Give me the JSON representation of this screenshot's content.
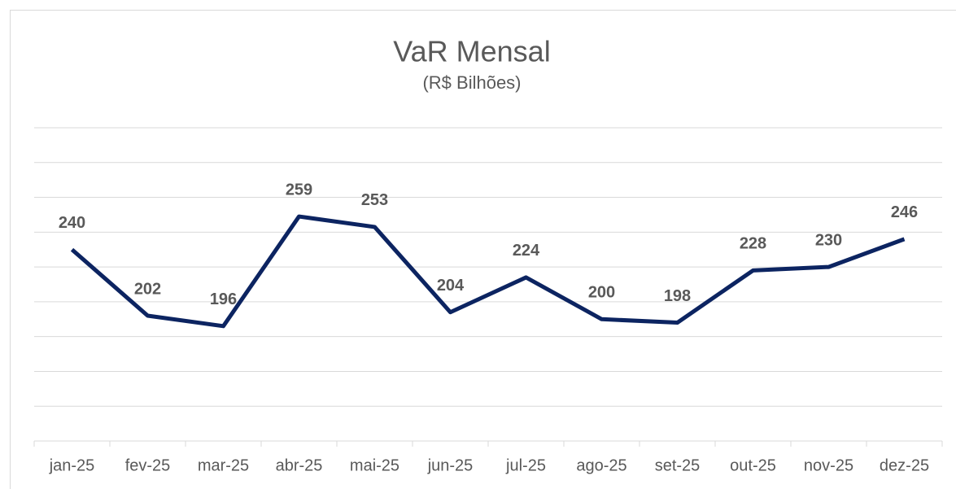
{
  "chart_data": {
    "type": "line",
    "title": "VaR Mensal",
    "subtitle": "(R$ Bilhões)",
    "categories": [
      "jan-25",
      "fev-25",
      "mar-25",
      "abr-25",
      "mai-25",
      "jun-25",
      "jul-25",
      "ago-25",
      "set-25",
      "out-25",
      "nov-25",
      "dez-25"
    ],
    "series": [
      {
        "name": "VaR",
        "color": "#0c2461",
        "values": [
          240,
          202,
          196,
          259,
          253,
          204,
          224,
          200,
          198,
          228,
          230,
          246
        ]
      }
    ],
    "ylim": [
      130,
      310
    ],
    "yticks": [
      130,
      150,
      170,
      190,
      210,
      230,
      250,
      270,
      290,
      310
    ],
    "grid": true
  }
}
